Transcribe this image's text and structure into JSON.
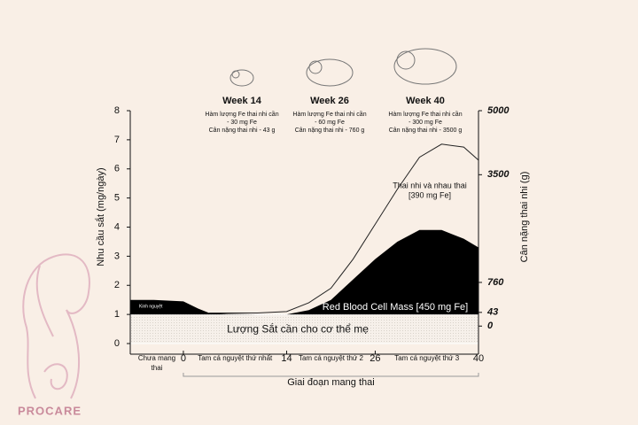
{
  "chart_data": {
    "type": "area-line",
    "ylabel": "Nhu cầu sắt (mg/ngày)",
    "y2label": "Cân nặng thai nhi (g)",
    "xlabel": "Giai đoạn mang thai",
    "ylim": [
      0,
      8
    ],
    "yticks": [
      0,
      1,
      2,
      3,
      4,
      5,
      6,
      7,
      8
    ],
    "y2ticks": [
      {
        "value": 5000,
        "at": 8
      },
      {
        "value": 3500,
        "at": 5.8
      },
      {
        "value": 760,
        "at": 2.1
      },
      {
        "value": 43,
        "at": 1.07
      },
      {
        "value": 0,
        "at": 0.6
      }
    ],
    "xlim": [
      -7.2,
      40
    ],
    "xticks": [
      0,
      14,
      26,
      40
    ],
    "periods": [
      {
        "label": "Chưa mang thai",
        "from": -7.2,
        "to": 0
      },
      {
        "label": "Tam cá nguyệt thứ nhất",
        "from": 0,
        "to": 14
      },
      {
        "label": "Tam cá nguyệt thứ  2",
        "from": 14,
        "to": 26
      },
      {
        "label": "Tam cá nguyệt thứ  3",
        "from": 26,
        "to": 40
      }
    ],
    "x": [
      -7.2,
      -4,
      0,
      2,
      3.5,
      6,
      10,
      14,
      17,
      20,
      23,
      26,
      29,
      32,
      35,
      38,
      40
    ],
    "series": [
      {
        "name": "Lượng Sắt cần cho cơ thể mẹ",
        "color": "#f3ede6",
        "values": [
          1,
          1,
          1,
          1,
          1,
          1,
          1,
          1,
          1,
          1,
          1,
          1,
          1,
          1,
          1,
          1,
          1
        ]
      },
      {
        "name": "Red Blood Cell Mass [450 mg Fe]",
        "color": "#000000",
        "values": [
          1.5,
          1.5,
          1.45,
          1.2,
          1.05,
          1.02,
          1.0,
          1.0,
          1.15,
          1.5,
          2.2,
          2.9,
          3.5,
          3.9,
          3.9,
          3.6,
          3.3
        ]
      },
      {
        "name": "Thai nhi và nhau thai",
        "color": "#222222",
        "values": [
          null,
          null,
          null,
          null,
          1.05,
          1.05,
          1.05,
          1.1,
          1.4,
          1.9,
          2.9,
          4.1,
          5.3,
          6.4,
          6.85,
          6.75,
          6.3
        ]
      }
    ],
    "annotations": [
      "[390 mg Fe]",
      "Kinh nguyệt"
    ],
    "weeks": [
      {
        "title": "Week 14",
        "lines": [
          "Hàm lượng Fe thai nhi cần",
          "- 30 mg Fe",
          "Cân nặng thai nhi - 43 g"
        ]
      },
      {
        "title": "Week 26",
        "lines": [
          "Hàm lượng Fe thai nhi cần",
          "- 60 mg Fe",
          "Cân nặng thai nhi - 760 g"
        ]
      },
      {
        "title": "Week 40",
        "lines": [
          "Hàm lượng Fe thai nhi cần",
          "- 300 mg Fe",
          "Cân nặng thai nhi - 3500 g"
        ]
      }
    ],
    "logo": "PROCARE"
  }
}
